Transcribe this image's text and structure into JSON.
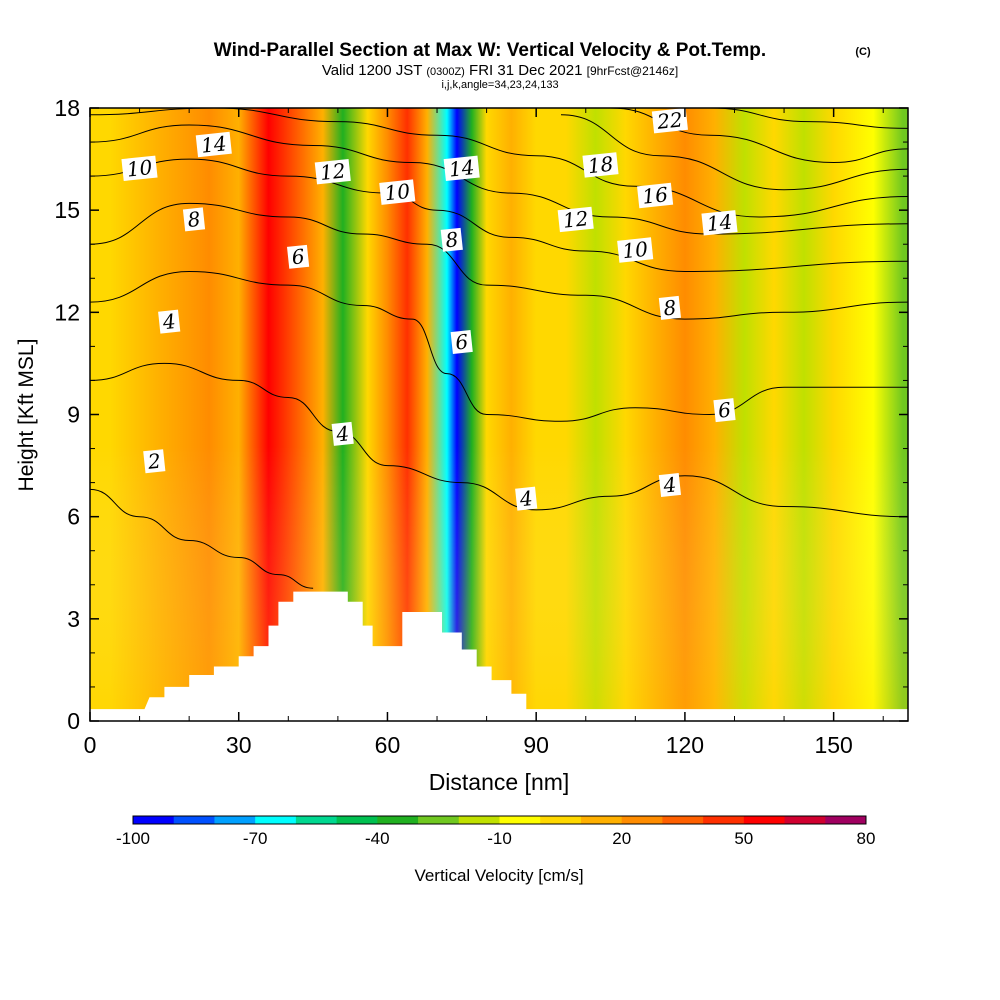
{
  "header": {
    "title_main": "Wind-Parallel Section at Max W: Vertical Velocity & Pot.Temp.",
    "title_mark": "(C)",
    "valid_a": "Valid 1200 JST",
    "valid_b": "(0300Z)",
    "valid_c": "FRI 31 Dec 2021",
    "valid_d": "[9hrFcst@2146z]",
    "indices": "i,j,k,angle=34,23,24,133"
  },
  "chart_data": {
    "type": "heatmap",
    "title": "Wind-Parallel Section at Max W: Vertical Velocity & Pot.Temp.",
    "xlabel": "Distance [nm]",
    "ylabel": "Height [Kft MSL]",
    "xlim": [
      0,
      165
    ],
    "ylim": [
      0,
      18
    ],
    "x_ticks": [
      "0",
      "30",
      "60",
      "90",
      "120",
      "150"
    ],
    "y_ticks": [
      "0",
      "3",
      "6",
      "9",
      "12",
      "15",
      "18"
    ],
    "colorbar": {
      "label": "Vertical Velocity [cm/s]",
      "tick_labels": [
        "-100",
        "-70",
        "-40",
        "-10",
        "20",
        "50",
        "80"
      ],
      "colors": [
        "#0000ff",
        "#0050ff",
        "#00a0ff",
        "#00ffff",
        "#00d890",
        "#00c050",
        "#20b020",
        "#70c820",
        "#c0e000",
        "#ffff00",
        "#ffd800",
        "#ffb000",
        "#ff8c00",
        "#ff6000",
        "#ff3000",
        "#ff0000",
        "#d00030",
        "#a00060",
        "#800080"
      ]
    },
    "velocity_bands": [
      {
        "x": 4,
        "w": 0
      },
      {
        "x": 14,
        "w": 12
      },
      {
        "x": 24,
        "w": 20
      },
      {
        "x": 30,
        "w": 15
      },
      {
        "x": 36,
        "w": 55
      },
      {
        "x": 42,
        "w": 35
      },
      {
        "x": 47,
        "w": 10
      },
      {
        "x": 51,
        "w": -40
      },
      {
        "x": 56,
        "w": 5
      },
      {
        "x": 60,
        "w": 25
      },
      {
        "x": 64,
        "w": 40
      },
      {
        "x": 68,
        "w": 10
      },
      {
        "x": 72,
        "w": -70
      },
      {
        "x": 74,
        "w": -100
      },
      {
        "x": 77,
        "w": -40
      },
      {
        "x": 80,
        "w": 5
      },
      {
        "x": 85,
        "w": 15
      },
      {
        "x": 90,
        "w": 0
      },
      {
        "x": 96,
        "w": 5
      },
      {
        "x": 102,
        "w": -20
      },
      {
        "x": 108,
        "w": 0
      },
      {
        "x": 114,
        "w": 15
      },
      {
        "x": 120,
        "w": 20
      },
      {
        "x": 126,
        "w": 10
      },
      {
        "x": 132,
        "w": -20
      },
      {
        "x": 138,
        "w": 0
      },
      {
        "x": 144,
        "w": -20
      },
      {
        "x": 150,
        "w": 5
      },
      {
        "x": 158,
        "w": -10
      },
      {
        "x": 164,
        "w": -30
      }
    ],
    "theta_contours": [
      {
        "label": "2",
        "points": [
          [
            0,
            6.8
          ],
          [
            10,
            6.0
          ],
          [
            20,
            5.3
          ],
          [
            30,
            4.8
          ],
          [
            38,
            4.3
          ],
          [
            45,
            3.9
          ]
        ]
      },
      {
        "label": "4",
        "points": [
          [
            0,
            10.0
          ],
          [
            15,
            10.5
          ],
          [
            30,
            10.0
          ],
          [
            40,
            9.5
          ],
          [
            50,
            8.5
          ],
          [
            60,
            7.5
          ],
          [
            75,
            7.0
          ],
          [
            90,
            6.2
          ],
          [
            105,
            6.6
          ],
          [
            120,
            7.2
          ],
          [
            140,
            6.3
          ],
          [
            165,
            6.0
          ]
        ]
      },
      {
        "label": "6",
        "points": [
          [
            0,
            12.3
          ],
          [
            20,
            13.2
          ],
          [
            40,
            12.8
          ],
          [
            55,
            12.2
          ],
          [
            65,
            11.8
          ],
          [
            72,
            10.2
          ],
          [
            80,
            9.0
          ],
          [
            95,
            8.8
          ],
          [
            110,
            9.2
          ],
          [
            125,
            9.0
          ],
          [
            140,
            9.8
          ],
          [
            165,
            9.8
          ]
        ]
      },
      {
        "label": "8",
        "points": [
          [
            0,
            14.0
          ],
          [
            20,
            15.2
          ],
          [
            40,
            14.8
          ],
          [
            55,
            14.3
          ],
          [
            68,
            14.0
          ],
          [
            80,
            12.8
          ],
          [
            100,
            12.5
          ],
          [
            120,
            11.8
          ],
          [
            140,
            12.0
          ],
          [
            165,
            12.3
          ]
        ]
      },
      {
        "label": "10",
        "points": [
          [
            0,
            16.0
          ],
          [
            20,
            16.5
          ],
          [
            40,
            16.0
          ],
          [
            60,
            15.5
          ],
          [
            70,
            15.0
          ],
          [
            85,
            14.2
          ],
          [
            100,
            13.8
          ],
          [
            120,
            13.2
          ],
          [
            165,
            13.5
          ]
        ]
      },
      {
        "label": "12",
        "points": [
          [
            0,
            17.0
          ],
          [
            20,
            17.5
          ],
          [
            45,
            16.9
          ],
          [
            65,
            16.4
          ],
          [
            85,
            15.5
          ],
          [
            105,
            14.8
          ],
          [
            125,
            14.3
          ],
          [
            165,
            14.6
          ]
        ]
      },
      {
        "label": "14",
        "points": [
          [
            0,
            17.8
          ],
          [
            25,
            18.0
          ],
          [
            50,
            17.6
          ],
          [
            70,
            17.2
          ],
          [
            90,
            16.6
          ],
          [
            110,
            15.7
          ],
          [
            135,
            14.8
          ],
          [
            165,
            15.4
          ]
        ]
      },
      {
        "label": "16",
        "points": [
          [
            95,
            17.8
          ],
          [
            115,
            16.6
          ],
          [
            140,
            15.6
          ],
          [
            165,
            16.2
          ]
        ]
      },
      {
        "label": "18",
        "points": [
          [
            105,
            18.0
          ],
          [
            125,
            17.2
          ],
          [
            150,
            16.4
          ],
          [
            165,
            16.8
          ]
        ]
      },
      {
        "label": "22",
        "points": [
          [
            125,
            18.0
          ],
          [
            145,
            17.6
          ],
          [
            165,
            17.4
          ]
        ]
      }
    ],
    "contour_labels": [
      {
        "text": "2",
        "x": 13,
        "y": 7.6
      },
      {
        "text": "4",
        "x": 16,
        "y": 11.7
      },
      {
        "text": "4",
        "x": 51,
        "y": 8.4
      },
      {
        "text": "4",
        "x": 88,
        "y": 6.5
      },
      {
        "text": "4",
        "x": 117,
        "y": 6.9
      },
      {
        "text": "6",
        "x": 42,
        "y": 13.6
      },
      {
        "text": "6",
        "x": 75,
        "y": 11.1
      },
      {
        "text": "6",
        "x": 128,
        "y": 9.1
      },
      {
        "text": "8",
        "x": 21,
        "y": 14.7
      },
      {
        "text": "8",
        "x": 73,
        "y": 14.1
      },
      {
        "text": "8",
        "x": 117,
        "y": 12.1
      },
      {
        "text": "10",
        "x": 10,
        "y": 16.2
      },
      {
        "text": "10",
        "x": 62,
        "y": 15.5
      },
      {
        "text": "10",
        "x": 110,
        "y": 13.8
      },
      {
        "text": "12",
        "x": 49,
        "y": 16.1
      },
      {
        "text": "12",
        "x": 98,
        "y": 14.7
      },
      {
        "text": "14",
        "x": 25,
        "y": 16.9
      },
      {
        "text": "14",
        "x": 75,
        "y": 16.2
      },
      {
        "text": "14",
        "x": 127,
        "y": 14.6
      },
      {
        "text": "16",
        "x": 114,
        "y": 15.4
      },
      {
        "text": "18",
        "x": 103,
        "y": 16.3
      },
      {
        "text": "22",
        "x": 117,
        "y": 17.6
      }
    ],
    "terrain": [
      [
        0,
        0.35
      ],
      [
        11,
        0.35
      ],
      [
        12,
        0.7
      ],
      [
        15,
        0.7
      ],
      [
        15,
        1.0
      ],
      [
        20,
        1.0
      ],
      [
        20,
        1.35
      ],
      [
        25,
        1.35
      ],
      [
        25,
        1.6
      ],
      [
        30,
        1.6
      ],
      [
        30,
        1.9
      ],
      [
        33,
        1.9
      ],
      [
        33,
        2.2
      ],
      [
        36,
        2.2
      ],
      [
        36,
        2.8
      ],
      [
        38,
        2.8
      ],
      [
        38,
        3.5
      ],
      [
        41,
        3.5
      ],
      [
        41,
        3.8
      ],
      [
        52,
        3.8
      ],
      [
        52,
        3.5
      ],
      [
        55,
        3.5
      ],
      [
        55,
        2.8
      ],
      [
        57,
        2.8
      ],
      [
        57,
        2.2
      ],
      [
        63,
        2.2
      ],
      [
        63,
        3.2
      ],
      [
        71,
        3.2
      ],
      [
        71,
        2.6
      ],
      [
        75,
        2.6
      ],
      [
        75,
        2.1
      ],
      [
        78,
        2.1
      ],
      [
        78,
        1.6
      ],
      [
        81,
        1.6
      ],
      [
        81,
        1.2
      ],
      [
        85,
        1.2
      ],
      [
        85,
        0.8
      ],
      [
        88,
        0.8
      ],
      [
        88,
        0.35
      ],
      [
        165,
        0.35
      ]
    ]
  }
}
